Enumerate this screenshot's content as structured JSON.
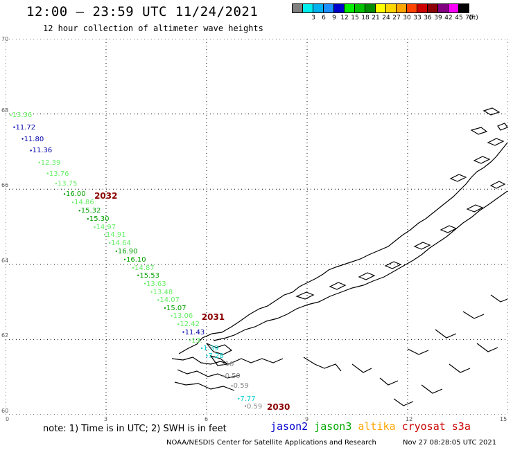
{
  "header": {
    "title": "12:00 — 23:59 UTC 11/24/2021",
    "subtitle": "12 hour collection of altimeter wave heights"
  },
  "color_scale": {
    "unit": "(ft)",
    "bins": [
      {
        "label": "",
        "color": "#808080"
      },
      {
        "label": "3",
        "color": "#00eeee"
      },
      {
        "label": "6",
        "color": "#00b2ee"
      },
      {
        "label": "9",
        "color": "#1e90ff"
      },
      {
        "label": "12",
        "color": "#0000cd"
      },
      {
        "label": "15",
        "color": "#00ee00"
      },
      {
        "label": "18",
        "color": "#00c000"
      },
      {
        "label": "21",
        "color": "#008b00"
      },
      {
        "label": "24",
        "color": "#ffff00"
      },
      {
        "label": "27",
        "color": "#ffd700"
      },
      {
        "label": "30",
        "color": "#ffa500"
      },
      {
        "label": "33",
        "color": "#ff4500"
      },
      {
        "label": "36",
        "color": "#cd0000"
      },
      {
        "label": "39",
        "color": "#8b0000"
      },
      {
        "label": "42",
        "color": "#800080"
      },
      {
        "label": "45",
        "color": "#ff00ff"
      },
      {
        "label": "70",
        "color": "#000000"
      }
    ]
  },
  "map": {
    "lon_range": [
      0,
      15
    ],
    "lat_range": [
      60,
      70
    ],
    "lon_ticks": [
      "0",
      "3",
      "6",
      "9",
      "12",
      "15"
    ],
    "lat_ticks": [
      "60",
      "62",
      "64",
      "66",
      "68",
      "70"
    ]
  },
  "observations": [
    {
      "text": "13.36",
      "lon": 0.2,
      "lat": 68.06,
      "color": "#66ee66"
    },
    {
      "text": "11.72",
      "lon": 0.3,
      "lat": 67.74,
      "color": "#0000aa"
    },
    {
      "text": "11.80",
      "lon": 0.55,
      "lat": 67.43,
      "color": "#0000aa"
    },
    {
      "text": "11.36",
      "lon": 0.8,
      "lat": 67.12,
      "color": "#0000aa"
    },
    {
      "text": "12.39",
      "lon": 1.05,
      "lat": 66.8,
      "color": "#66ee66"
    },
    {
      "text": "13.76",
      "lon": 1.3,
      "lat": 66.51,
      "color": "#66ee66"
    },
    {
      "text": "13.75",
      "lon": 1.55,
      "lat": 66.24,
      "color": "#66ee66"
    },
    {
      "text": "16.00",
      "lon": 1.8,
      "lat": 65.96,
      "color": "#00a000"
    },
    {
      "text": "14.86",
      "lon": 2.05,
      "lat": 65.74,
      "color": "#66ee66"
    },
    {
      "text": "15.32",
      "lon": 2.25,
      "lat": 65.52,
      "color": "#00a000"
    },
    {
      "text": "15.30",
      "lon": 2.5,
      "lat": 65.3,
      "color": "#00a000"
    },
    {
      "text": "14.97",
      "lon": 2.7,
      "lat": 65.08,
      "color": "#66ee66"
    },
    {
      "text": "14.91",
      "lon": 3.0,
      "lat": 64.88,
      "color": "#66ee66"
    },
    {
      "text": "14.64",
      "lon": 3.15,
      "lat": 64.66,
      "color": "#66ee66"
    },
    {
      "text": "16.90",
      "lon": 3.35,
      "lat": 64.44,
      "color": "#00a000"
    },
    {
      "text": "16.10",
      "lon": 3.6,
      "lat": 64.22,
      "color": "#00a000"
    },
    {
      "text": "14.87",
      "lon": 3.85,
      "lat": 64.0,
      "color": "#66ee66"
    },
    {
      "text": "15.53",
      "lon": 4.0,
      "lat": 63.8,
      "color": "#00a000"
    },
    {
      "text": "13.63",
      "lon": 4.2,
      "lat": 63.58,
      "color": "#66ee66"
    },
    {
      "text": "13.48",
      "lon": 4.4,
      "lat": 63.36,
      "color": "#66ee66"
    },
    {
      "text": "14.07",
      "lon": 4.6,
      "lat": 63.14,
      "color": "#66ee66"
    },
    {
      "text": "15.07",
      "lon": 4.8,
      "lat": 62.93,
      "color": "#00a000"
    },
    {
      "text": "13.06",
      "lon": 5.0,
      "lat": 62.72,
      "color": "#66ee66"
    },
    {
      "text": "12.42",
      "lon": 5.2,
      "lat": 62.5,
      "color": "#66ee66"
    },
    {
      "text": "11.43",
      "lon": 5.35,
      "lat": 62.29,
      "color": "#0000aa"
    },
    {
      "text": "13.",
      "lon": 5.55,
      "lat": 62.07,
      "color": "#66ee66"
    },
    {
      "text": "1.39",
      "lon": 5.9,
      "lat": 61.86,
      "color": "#00cdcd"
    },
    {
      "text": "7.28",
      "lon": 6.05,
      "lat": 61.66,
      "color": "#00cdcd"
    },
    {
      "text": "10",
      "lon": 6.55,
      "lat": 61.44,
      "color": "#888888"
    },
    {
      "text": "0.59",
      "lon": 6.55,
      "lat": 61.12,
      "color": "#888888"
    },
    {
      "text": "0.59",
      "lon": 6.8,
      "lat": 60.86,
      "color": "#888888"
    },
    {
      "text": "7.77",
      "lon": 7.0,
      "lat": 60.52,
      "color": "#00cdcd"
    },
    {
      "text": "0.59",
      "lon": 7.2,
      "lat": 60.32,
      "color": "#888888"
    }
  ],
  "track_times": [
    {
      "text": "2032",
      "lon": 2.65,
      "lat": 65.95
    },
    {
      "text": "2031",
      "lon": 5.85,
      "lat": 62.73
    },
    {
      "text": "2030",
      "lon": 7.8,
      "lat": 60.33
    }
  ],
  "footer": {
    "note": "note: 1) Time is in UTC; 2) SWH is in feet",
    "satellites": [
      {
        "name": "jason2",
        "color": "#0000cd"
      },
      {
        "name": "jason3",
        "color": "#00aa00"
      },
      {
        "name": "altika",
        "color": "#ffa500"
      },
      {
        "name": "cryosat",
        "color": "#cd0000"
      },
      {
        "name": "s3a",
        "color": "#cd0000"
      }
    ],
    "credit": "NOAA/NESDIS Center for Satellite Applications and Research",
    "timestamp": "Nov 27 08:28:05 UTC 2021"
  }
}
